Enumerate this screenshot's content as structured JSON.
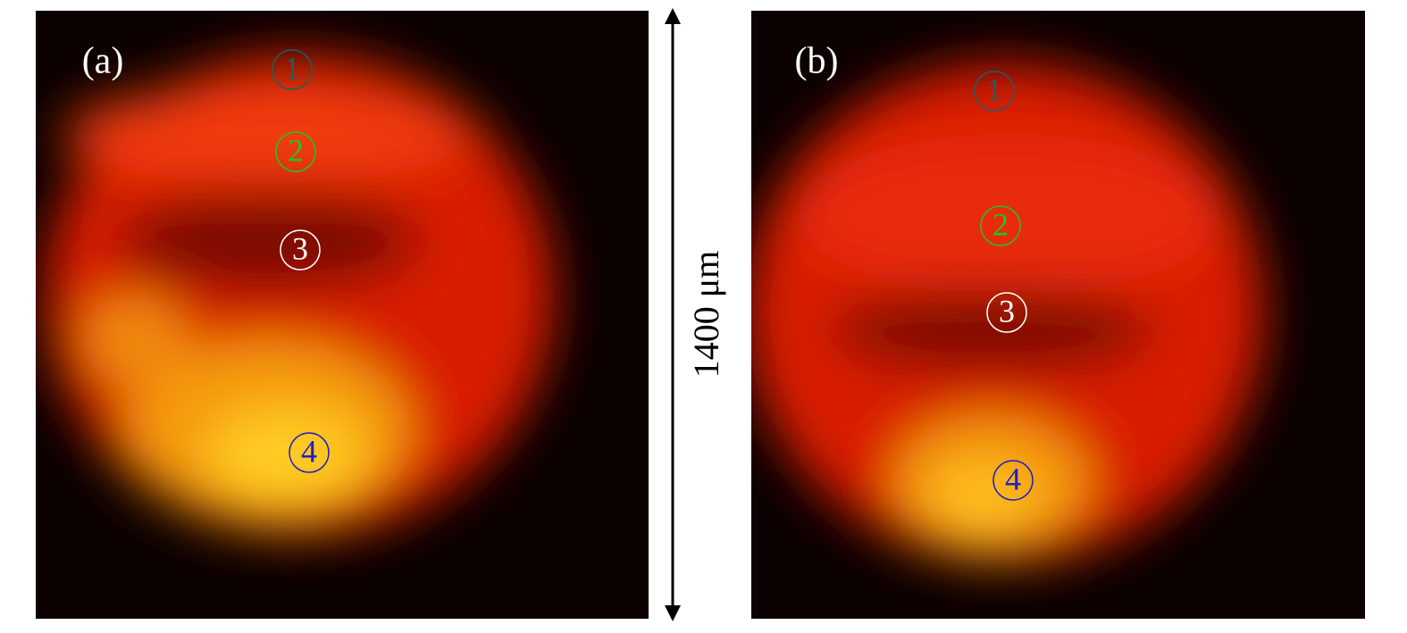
{
  "panels": [
    {
      "label": "(a)",
      "markers": [
        {
          "label": "1",
          "color": "#1d5f66"
        },
        {
          "label": "2",
          "color": "#22c422"
        },
        {
          "label": "3",
          "color": "#ffffff"
        },
        {
          "label": "4",
          "color": "#1a22c8"
        }
      ]
    },
    {
      "label": "(b)",
      "markers": [
        {
          "label": "1",
          "color": "#1d5f66"
        },
        {
          "label": "2",
          "color": "#22c422"
        },
        {
          "label": "3",
          "color": "#ffffff"
        },
        {
          "label": "4",
          "color": "#1a22c8"
        }
      ]
    }
  ],
  "scale_bar": {
    "label": "1400 μm"
  }
}
